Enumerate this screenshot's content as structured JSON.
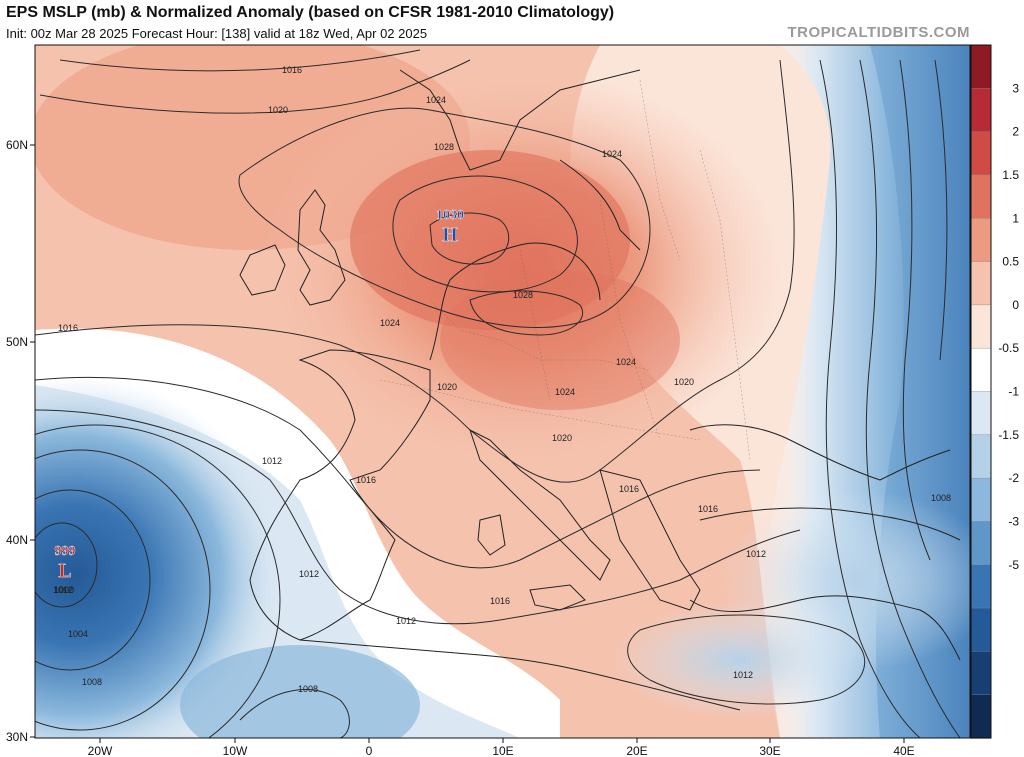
{
  "header": {
    "title": "EPS MSLP (mb) & Normalized Anomaly (based on CFSR 1981-2010 Climatology)",
    "subtitle": "Init: 00z Mar 28 2025   Forecast Hour: [138]   valid at 18z Wed, Apr 02 2025",
    "watermark": "TROPICALTIDBITS.COM"
  },
  "axes": {
    "lat_labels": [
      "60N",
      "50N",
      "40N",
      "30N"
    ],
    "lon_labels": [
      "20W",
      "10W",
      "0",
      "10E",
      "20E",
      "30E",
      "40E"
    ]
  },
  "colorbar": {
    "labels": [
      "3",
      "2",
      "1.5",
      "1",
      "0.5",
      "0",
      "-0.5",
      "-1",
      "-1.5",
      "-2",
      "-3",
      "-5"
    ],
    "colors": [
      "#8e1a24",
      "#b62b34",
      "#cf4c45",
      "#e0735d",
      "#ec9a80",
      "#f5c2ad",
      "#fbe4d8",
      "#ffffff",
      "#dbe8f3",
      "#b5d1e8",
      "#8bb8dc",
      "#5f97c9",
      "#3a75b3",
      "#245a97",
      "#173f73",
      "#0f2b52"
    ]
  },
  "pressure_centers": [
    {
      "type": "high",
      "value": "1030",
      "letter": "H",
      "color": "#1f4fa8"
    },
    {
      "type": "low",
      "value": "999",
      "letter": "L",
      "color": "#c62828"
    }
  ],
  "contour_labels": [
    "1016",
    "1020",
    "1024",
    "1028",
    "1024",
    "1028",
    "1024",
    "1016",
    "1024",
    "1020",
    "1024",
    "1020",
    "1012",
    "1016",
    "1020",
    "1016",
    "1016",
    "1012",
    "1012",
    "1012",
    "1016",
    "1012",
    "1008",
    "1012",
    "1008",
    "1000",
    "1004",
    "1008"
  ]
}
